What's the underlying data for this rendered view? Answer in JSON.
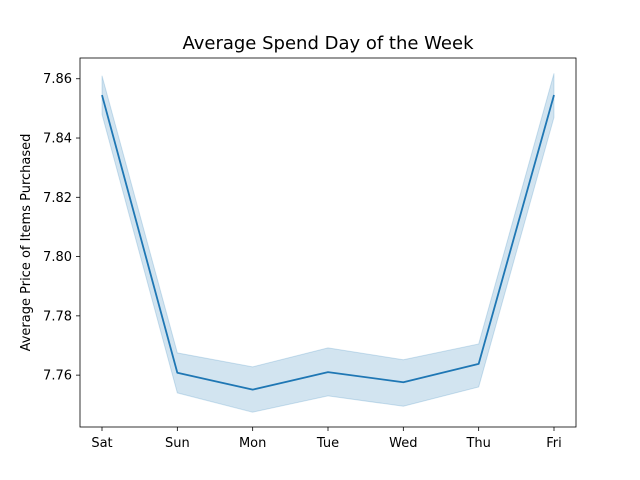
{
  "chart_data": {
    "type": "line",
    "title": "Average Spend Day of the Week",
    "xlabel": "",
    "ylabel": "Average Price of Items Purchased",
    "categories": [
      "Sat",
      "Sun",
      "Mon",
      "Tue",
      "Wed",
      "Thu",
      "Fri"
    ],
    "ylim": [
      7.7425,
      7.867
    ],
    "yticks": [
      7.76,
      7.78,
      7.8,
      7.82,
      7.84,
      7.86
    ],
    "ytick_labels": [
      "7.76",
      "7.78",
      "7.80",
      "7.82",
      "7.84",
      "7.86"
    ],
    "grid": false,
    "series": [
      {
        "values": [
          7.8545,
          7.7608,
          7.7551,
          7.761,
          7.7576,
          7.7638,
          7.8545
        ],
        "ci_lower": [
          7.848,
          7.754,
          7.7475,
          7.753,
          7.7495,
          7.756,
          7.847
        ],
        "ci_upper": [
          7.861,
          7.7675,
          7.7628,
          7.7692,
          7.7652,
          7.7705,
          7.8618
        ],
        "color": "#1f77b4"
      }
    ]
  }
}
